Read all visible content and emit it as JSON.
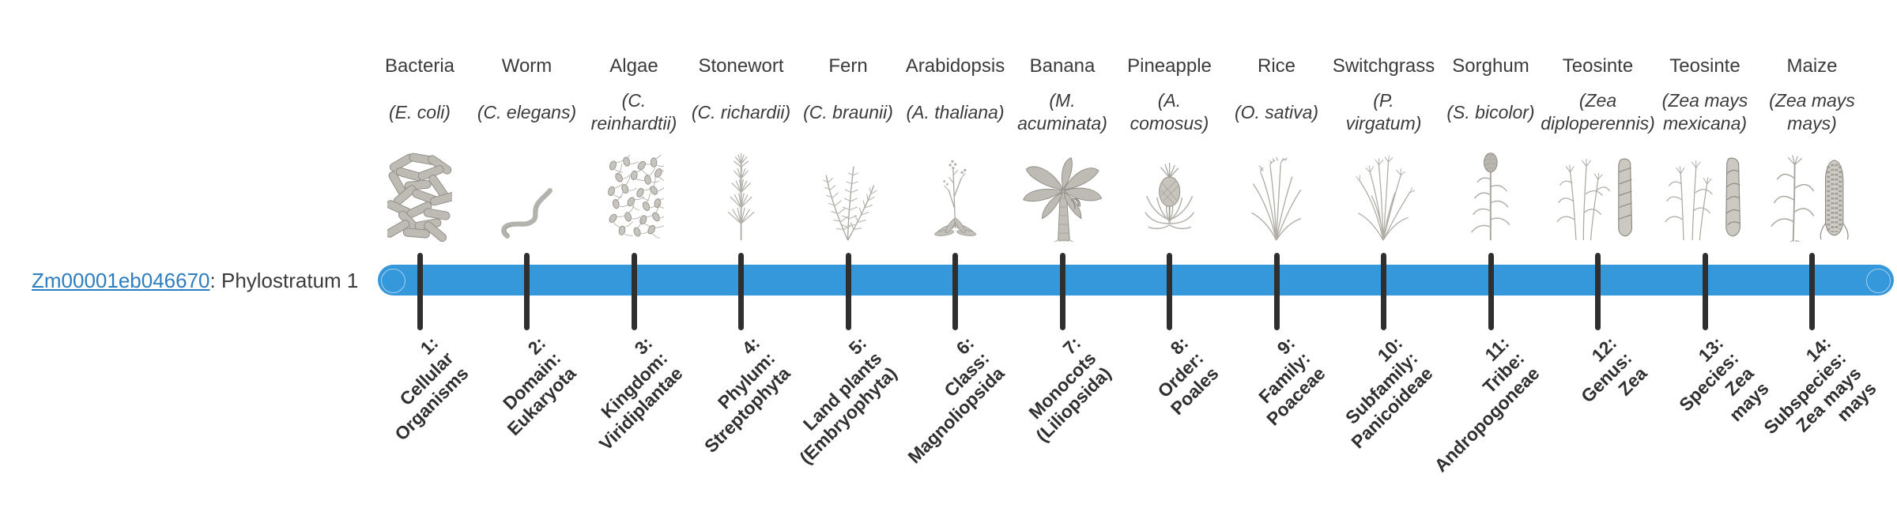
{
  "gene": {
    "id": "Zm00001eb046670",
    "suffix": ": Phylostratum 1"
  },
  "colors": {
    "bar": "#3598db",
    "tick": "#2f2f2f",
    "link": "#2d7ec0",
    "text": "#3b3b3b"
  },
  "timeline": {
    "stages_count": 14
  },
  "organisms": [
    {
      "name": "Bacteria",
      "sci_lines": [
        "(E. coli)"
      ],
      "icon": "bacteria-icon",
      "stage_lines": [
        "1:",
        "Cellular",
        "Organisms"
      ]
    },
    {
      "name": "Worm",
      "sci_lines": [
        "(C. elegans)"
      ],
      "icon": "worm-icon",
      "stage_lines": [
        "2:",
        "Domain:",
        "Eukaryota"
      ]
    },
    {
      "name": "Algae",
      "sci_lines": [
        "(C.",
        "reinhardtii)"
      ],
      "icon": "algae-icon",
      "stage_lines": [
        "3:",
        "Kingdom:",
        "Viridiplantae"
      ]
    },
    {
      "name": "Stonewort",
      "sci_lines": [
        "(C. richardii)"
      ],
      "icon": "stonewort-icon",
      "stage_lines": [
        "4:",
        "Phylum:",
        "Streptophyta"
      ]
    },
    {
      "name": "Fern",
      "sci_lines": [
        "(C. braunii)"
      ],
      "icon": "fern-icon",
      "stage_lines": [
        "5:",
        "Land plants",
        "(Embryophyta)"
      ]
    },
    {
      "name": "Arabidopsis",
      "sci_lines": [
        "(A. thaliana)"
      ],
      "icon": "arabidopsis-icon",
      "stage_lines": [
        "6:",
        "Class:",
        "Magnoliopsida"
      ]
    },
    {
      "name": "Banana",
      "sci_lines": [
        "(M.",
        "acuminata)"
      ],
      "icon": "banana-icon",
      "stage_lines": [
        "7:",
        "Monocots",
        "(Liliopsida)"
      ]
    },
    {
      "name": "Pineapple",
      "sci_lines": [
        "(A.",
        "comosus)"
      ],
      "icon": "pineapple-icon",
      "stage_lines": [
        "8:",
        "Order:",
        "Poales"
      ]
    },
    {
      "name": "Rice",
      "sci_lines": [
        "(O. sativa)"
      ],
      "icon": "rice-icon",
      "stage_lines": [
        "9:",
        "Family:",
        "Poaceae"
      ]
    },
    {
      "name": "Switchgrass",
      "sci_lines": [
        "(P.",
        "virgatum)"
      ],
      "icon": "switchgrass-icon",
      "stage_lines": [
        "10:",
        "Subfamily:",
        "Panicoideae"
      ]
    },
    {
      "name": "Sorghum",
      "sci_lines": [
        "(S. bicolor)"
      ],
      "icon": "sorghum-icon",
      "stage_lines": [
        "11:",
        "Tribe:",
        "Andropogoneae"
      ]
    },
    {
      "name": "Teosinte",
      "sci_lines": [
        "(Zea",
        "diploperennis)"
      ],
      "icon": "teosinte-diploperennis-icon",
      "stage_lines": [
        "12:",
        "Genus:",
        "Zea"
      ]
    },
    {
      "name": "Teosinte",
      "sci_lines": [
        "(Zea mays",
        "mexicana)"
      ],
      "icon": "teosinte-mexicana-icon",
      "stage_lines": [
        "13:",
        "Species:",
        "Zea",
        "mays"
      ]
    },
    {
      "name": "Maize",
      "sci_lines": [
        "(Zea mays",
        "mays)"
      ],
      "icon": "maize-icon",
      "stage_lines": [
        "14:",
        "Subspecies:",
        "Zea mays",
        "mays"
      ]
    }
  ]
}
